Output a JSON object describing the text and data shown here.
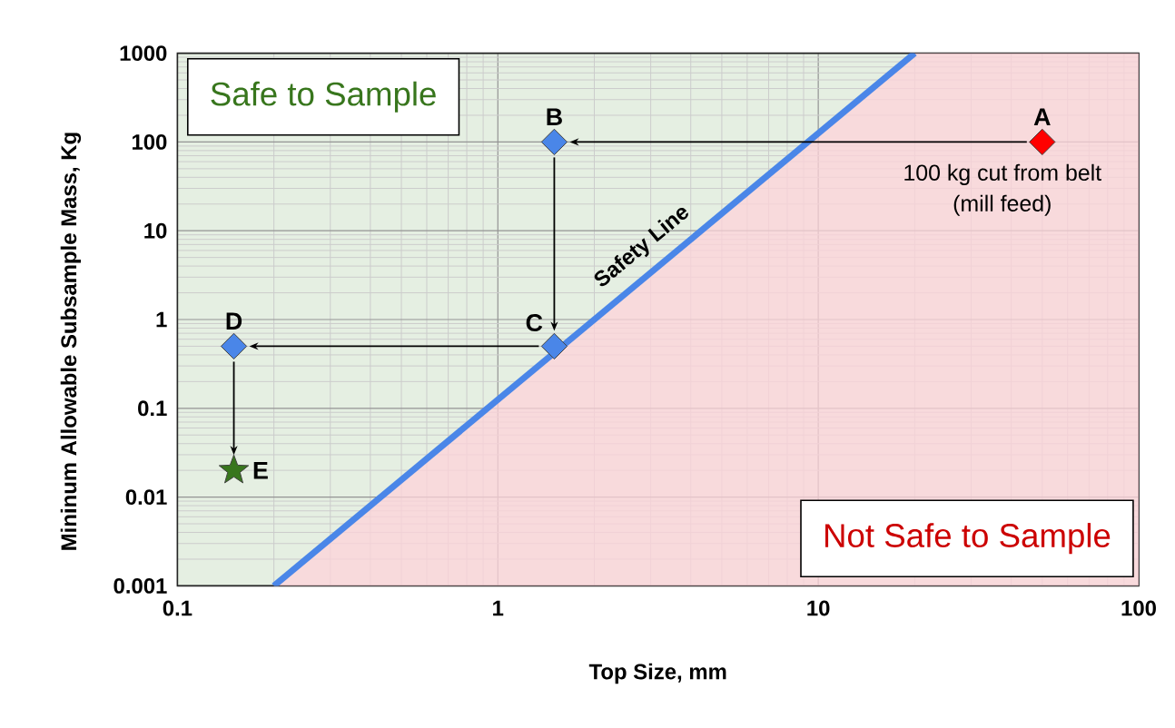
{
  "chart_data": {
    "type": "scatter",
    "xlabel": "Top Size, mm",
    "ylabel": "Mininum Allowable Subsample Mass, Kg",
    "log": "xy",
    "xlim": [
      0.1,
      100
    ],
    "ylim": [
      0.001,
      1000
    ],
    "xticks": [
      0.1,
      1,
      10,
      100
    ],
    "yticks": [
      0.001,
      0.01,
      0.1,
      1,
      10,
      100,
      1000
    ],
    "grid": true,
    "series": [
      {
        "type": "area",
        "name": "Not Safe to Sample",
        "color": "#f7dadb",
        "x": [
          0.2,
          20,
          100
        ],
        "values": [
          0.001,
          1000,
          1000
        ]
      },
      {
        "type": "line",
        "name": "Safety Line",
        "color": "#4a86e8",
        "x": [
          0.2,
          20
        ],
        "values": [
          0.001,
          1000
        ]
      },
      {
        "name": "A",
        "color": "#ff0000",
        "marker": "diamond",
        "x": [
          50
        ],
        "values": [
          100
        ]
      },
      {
        "name": "B",
        "color": "#4a86e8",
        "marker": "diamond",
        "x": [
          1.5
        ],
        "values": [
          100
        ]
      },
      {
        "name": "C",
        "color": "#4a86e8",
        "marker": "diamond",
        "x": [
          1.5
        ],
        "values": [
          0.5
        ]
      },
      {
        "name": "D",
        "color": "#4a86e8",
        "marker": "diamond",
        "x": [
          0.15
        ],
        "values": [
          0.5
        ]
      },
      {
        "name": "E",
        "color": "#38761d",
        "marker": "star",
        "x": [
          0.15
        ],
        "values": [
          0.02
        ]
      }
    ],
    "annotations": [
      "Safe to Sample",
      {
        "text": "100 kg cut from belt (mill feed)",
        "x": 50,
        "y": 100
      }
    ]
  }
}
